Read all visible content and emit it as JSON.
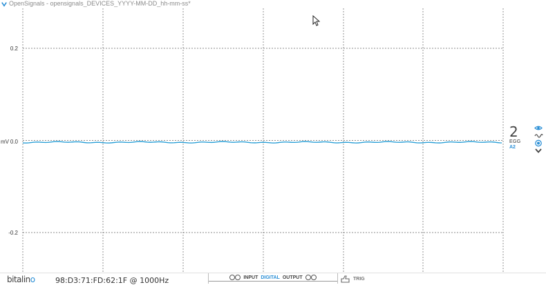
{
  "window": {
    "title": "OpenSignals - opensignals_DEVICES_YYYY-MM-DD_hh-mm-ss*"
  },
  "plot": {
    "unit_label": "mV",
    "y_ticks": [
      "0.2",
      "0.0",
      "-0.2"
    ],
    "y_tick_values": [
      0.2,
      0.0,
      -0.2
    ],
    "ylim": [
      -0.28,
      0.28
    ],
    "grid": true,
    "signal_color": "#2a9fd6",
    "signal_level": -0.004
  },
  "channel": {
    "number": "2",
    "type": "EGG",
    "port": "A2",
    "accent": "#2a8fd6"
  },
  "channel_controls": [
    "eye-icon",
    "wave-icon",
    "target-icon",
    "chevron-down-icon"
  ],
  "bottombar": {
    "logo_main": "bitalin",
    "logo_accent": "o",
    "device_info": "98:D3:71:FD:62:1F @ 1000Hz",
    "io_input": "INPUT",
    "io_digital": "DIGITAL",
    "io_output": "OUTPUT",
    "trig_label": "TRIG"
  }
}
